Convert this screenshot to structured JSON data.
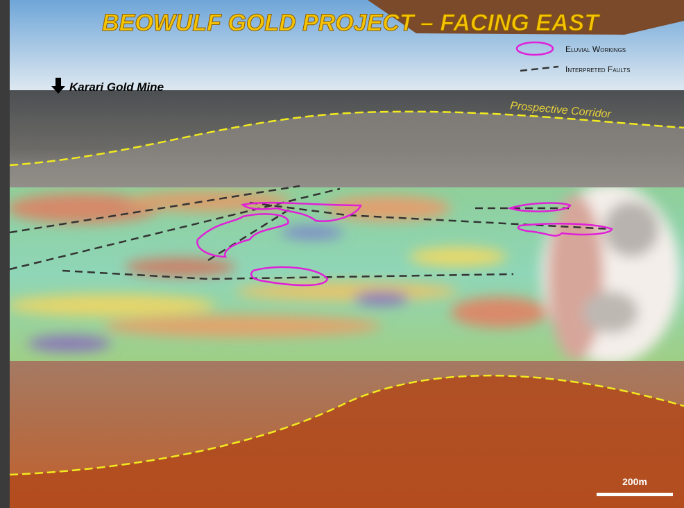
{
  "header": {
    "title": "BEOWULF GOLD PROJECT – FACING EAST"
  },
  "legend": {
    "items": [
      {
        "label": "Eluvial Workings"
      },
      {
        "label": "Interpreted Faults"
      }
    ]
  },
  "annotations": {
    "mine": "Karari Gold Mine",
    "corridor": "Prospective Corridor"
  },
  "scale_bar": {
    "label": "200m"
  }
}
